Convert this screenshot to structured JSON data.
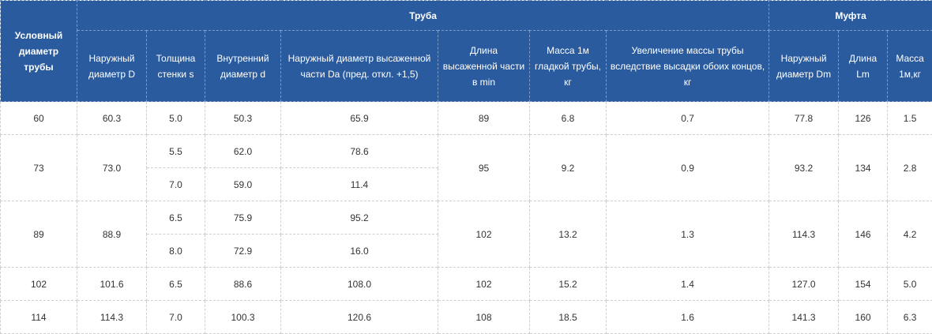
{
  "header": {
    "cond_diameter": "Условный диаметр трубы",
    "group_pipe": "Труба",
    "group_coupling": "Муфта",
    "columns": [
      "Наружный диаметр D",
      "Толщина стенки s",
      "Внутренний диаметр d",
      "Наружный диаметр высаженной части Da (пред. откл. +1,5)",
      "Длина высаженной части в min",
      "Масса 1м гладкой трубы, кг",
      "Увеличение массы трубы вследствие высадки обоих концов, кг",
      "Наружный диаметр Dm",
      "Длина Lm",
      "Масса 1м,кг"
    ]
  },
  "rows": [
    {
      "cond": "60",
      "D": "60.3",
      "s": [
        "5.0"
      ],
      "d": [
        "50.3"
      ],
      "Da": [
        "65.9"
      ],
      "len": "89",
      "mass": "6.8",
      "inc": "0.7",
      "Dm": "77.8",
      "Lm": "126",
      "mm": "1.5"
    },
    {
      "cond": "73",
      "D": "73.0",
      "s": [
        "5.5",
        "7.0"
      ],
      "d": [
        "62.0",
        "59.0"
      ],
      "Da": [
        "78.6",
        "11.4"
      ],
      "len": "95",
      "mass": "9.2",
      "inc": "0.9",
      "Dm": "93.2",
      "Lm": "134",
      "mm": "2.8"
    },
    {
      "cond": "89",
      "D": "88.9",
      "s": [
        "6.5",
        "8.0"
      ],
      "d": [
        "75.9",
        "72.9"
      ],
      "Da": [
        "95.2",
        "16.0"
      ],
      "len": "102",
      "mass": "13.2",
      "inc": "1.3",
      "Dm": "114.3",
      "Lm": "146",
      "mm": "4.2"
    },
    {
      "cond": "102",
      "D": "101.6",
      "s": [
        "6.5"
      ],
      "d": [
        "88.6"
      ],
      "Da": [
        "108.0"
      ],
      "len": "102",
      "mass": "15.2",
      "inc": "1.4",
      "Dm": "127.0",
      "Lm": "154",
      "mm": "5.0"
    },
    {
      "cond": "114",
      "D": "114.3",
      "s": [
        "7.0"
      ],
      "d": [
        "100.3"
      ],
      "Da": [
        "120.6"
      ],
      "len": "108",
      "mass": "18.5",
      "inc": "1.6",
      "Dm": "141.3",
      "Lm": "160",
      "mm": "6.3"
    }
  ]
}
